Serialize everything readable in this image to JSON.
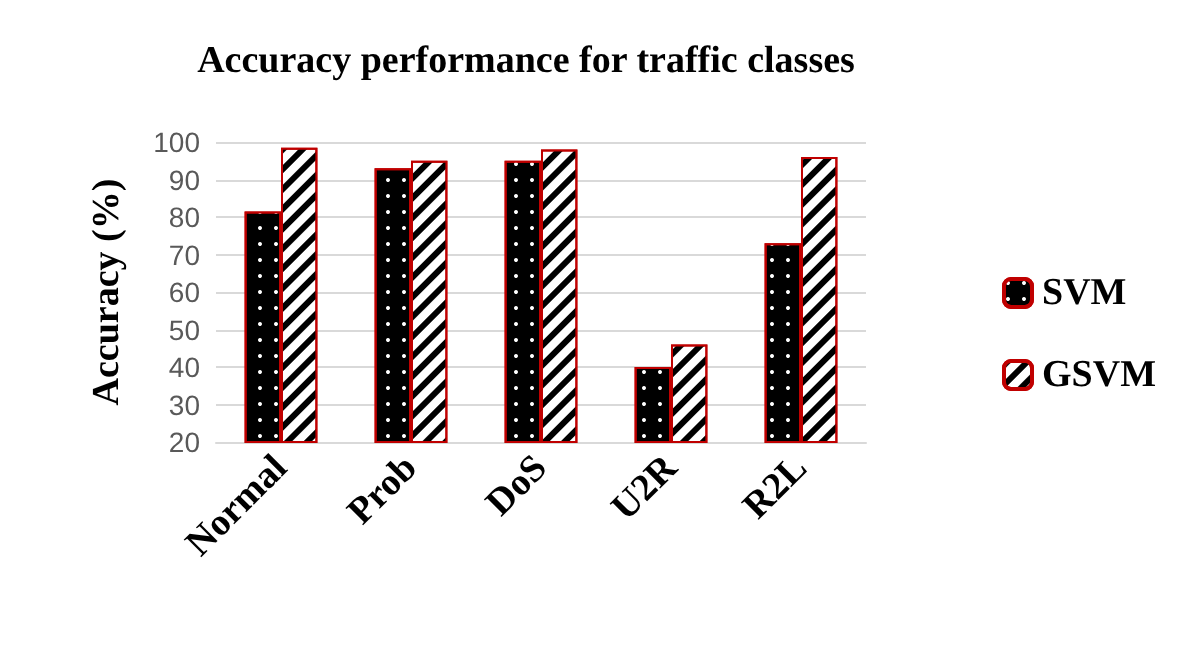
{
  "chart_data": {
    "type": "bar",
    "title": "Accuracy performance for traffic classes",
    "ylabel": "Accuracy (%)",
    "categories": [
      "Normal",
      "Prob",
      "DoS",
      "U2R",
      "R2L"
    ],
    "series": [
      {
        "name": "SVM",
        "color": "#000000",
        "values": [
          81.5,
          93,
          95,
          40,
          73
        ]
      },
      {
        "name": "GSVM",
        "color": "#ffffff",
        "values": [
          98.5,
          95,
          98,
          46,
          96
        ]
      }
    ],
    "ylim": [
      20,
      100
    ],
    "yticks": [
      20,
      30,
      40,
      50,
      60,
      70,
      80,
      90,
      100
    ],
    "grid": "y",
    "legend": "right"
  }
}
